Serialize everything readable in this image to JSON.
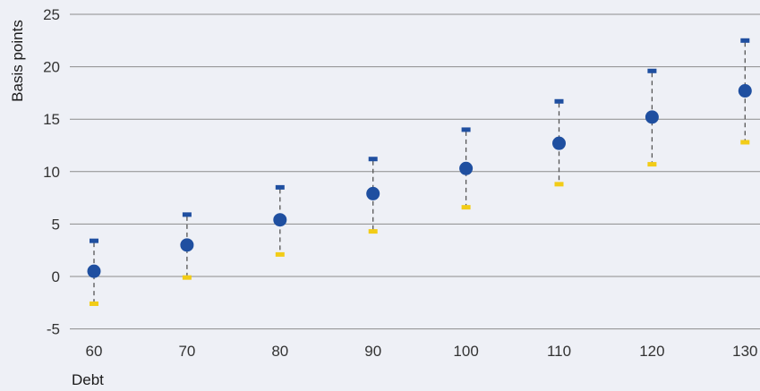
{
  "chart_data": {
    "type": "scatter",
    "title": "",
    "xlabel": "Debt",
    "ylabel": "Basis points",
    "x": [
      60,
      70,
      80,
      90,
      100,
      110,
      120,
      130
    ],
    "series": [
      {
        "role": "upper-bound",
        "values": [
          3.4,
          5.9,
          8.5,
          11.2,
          14.0,
          16.7,
          19.6,
          22.5
        ]
      },
      {
        "role": "point-estimate",
        "values": [
          0.5,
          3.0,
          5.4,
          7.9,
          10.3,
          12.7,
          15.2,
          17.7
        ]
      },
      {
        "role": "lower-bound",
        "values": [
          -2.6,
          -0.1,
          2.1,
          4.3,
          6.6,
          8.8,
          10.7,
          12.8
        ]
      }
    ],
    "xticks": [
      "60",
      "70",
      "80",
      "90",
      "100",
      "110",
      "120",
      "130"
    ],
    "yticks": [
      "-5",
      "0",
      "5",
      "10",
      "15",
      "20",
      "25"
    ],
    "ylim": [
      -5,
      25
    ],
    "xlim": [
      60,
      130
    ],
    "grid": "horizontal",
    "colors": {
      "background": "#eef0f6",
      "gridline": "#8c8c8c",
      "point": "#1f4fa0",
      "upper": "#1f4fa0",
      "lower": "#f2cc17",
      "connector": "#555555"
    }
  }
}
